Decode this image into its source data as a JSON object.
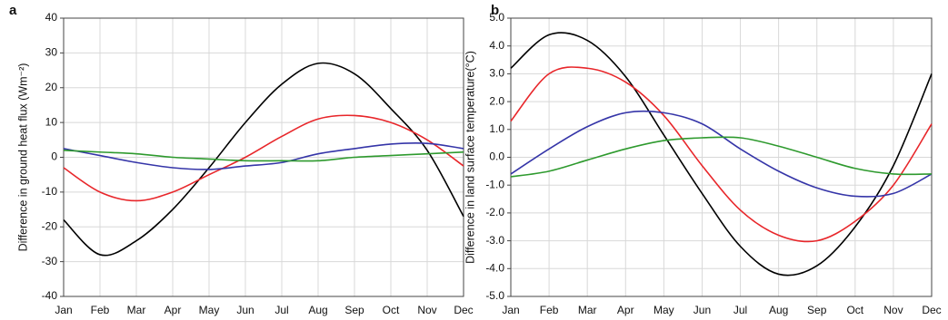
{
  "chart_data": [
    {
      "type": "line",
      "panel": "a",
      "ylabel": "Difference in ground heat flux (Wm⁻²)",
      "categories": [
        "Jan",
        "Feb",
        "Mar",
        "Apr",
        "May",
        "Jun",
        "Jul",
        "Aug",
        "Sep",
        "Oct",
        "Nov",
        "Dec"
      ],
      "ylim": [
        -40,
        40
      ],
      "yticks": [
        -40,
        -30,
        -20,
        -10,
        0,
        10,
        20,
        30,
        40
      ],
      "grid": true,
      "series": [
        {
          "color": "#000000",
          "values": [
            -18,
            -28,
            -24,
            -15,
            -3,
            10,
            21,
            27,
            24,
            14,
            2,
            -17
          ]
        },
        {
          "color": "#e8262a",
          "values": [
            -3,
            -10,
            -12.5,
            -10,
            -5,
            0,
            6,
            11,
            12,
            10,
            5,
            -2.5
          ]
        },
        {
          "color": "#3535a8",
          "values": [
            2.5,
            0.5,
            -1.5,
            -3,
            -3.5,
            -2.5,
            -1.5,
            1,
            2.5,
            3.8,
            4,
            2.5
          ]
        },
        {
          "color": "#2e9a2e",
          "values": [
            2,
            1.5,
            1,
            0,
            -0.5,
            -1,
            -1,
            -1,
            0,
            0.5,
            1,
            1.5
          ]
        }
      ]
    },
    {
      "type": "line",
      "panel": "b",
      "ylabel": "Difference in land surface temperature(°C)",
      "categories": [
        "Jan",
        "Feb",
        "Mar",
        "Apr",
        "May",
        "Jun",
        "Jul",
        "Aug",
        "Sep",
        "Oct",
        "Nov",
        "Dec"
      ],
      "ylim": [
        -5,
        5
      ],
      "yticks": [
        {
          "value": -5,
          "label": "-5.0"
        },
        {
          "value": -4,
          "label": "-4.0"
        },
        {
          "value": -3,
          "label": "-3.0"
        },
        {
          "value": -2,
          "label": "-2.0"
        },
        {
          "value": -1,
          "label": "-1.0"
        },
        {
          "value": 0,
          "label": "0.0"
        },
        {
          "value": 1,
          "label": "1.0"
        },
        {
          "value": 2,
          "label": "2.0"
        },
        {
          "value": 3,
          "label": "3.0"
        },
        {
          "value": 4,
          "label": "4.0"
        },
        {
          "value": 5,
          "label": "5.0"
        }
      ],
      "grid": true,
      "series": [
        {
          "color": "#000000",
          "values": [
            3.2,
            4.4,
            4.2,
            2.9,
            0.8,
            -1.3,
            -3.2,
            -4.2,
            -3.9,
            -2.5,
            -0.3,
            3.0
          ]
        },
        {
          "color": "#e8262a",
          "values": [
            1.3,
            3.0,
            3.2,
            2.7,
            1.5,
            -0.3,
            -1.9,
            -2.8,
            -3.0,
            -2.3,
            -1.0,
            1.2
          ]
        },
        {
          "color": "#3535a8",
          "values": [
            -0.6,
            0.3,
            1.1,
            1.6,
            1.6,
            1.2,
            0.3,
            -0.5,
            -1.1,
            -1.4,
            -1.3,
            -0.6
          ]
        },
        {
          "color": "#2e9a2e",
          "values": [
            -0.7,
            -0.5,
            -0.1,
            0.3,
            0.6,
            0.7,
            0.7,
            0.4,
            0.0,
            -0.4,
            -0.6,
            -0.6
          ]
        }
      ]
    }
  ]
}
